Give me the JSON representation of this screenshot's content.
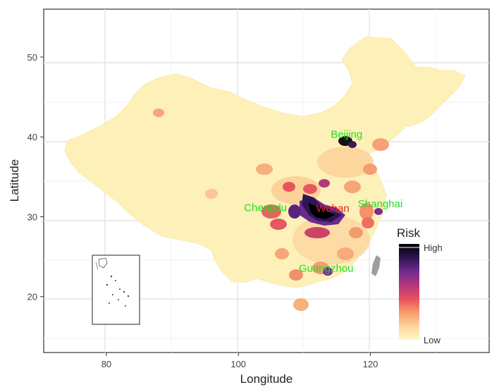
{
  "plot": {
    "xlabel": "Longitude",
    "ylabel": "Latitude",
    "x_ticks": [
      "80",
      "100",
      "120"
    ],
    "y_ticks": [
      "20",
      "30",
      "40",
      "50"
    ],
    "xlim": [
      70.5,
      138
    ],
    "ylim": [
      13,
      56
    ]
  },
  "cities": [
    {
      "name": "Beijing",
      "lon": 116.4,
      "lat": 39.9,
      "label_color": "#22e022"
    },
    {
      "name": "Chengdu",
      "lon": 104.1,
      "lat": 30.7,
      "label_color": "#22e022"
    },
    {
      "name": "Wuhan",
      "lon": 114.3,
      "lat": 30.6,
      "label_color": "#e02020"
    },
    {
      "name": "Shanghai",
      "lon": 121.5,
      "lat": 31.2,
      "label_color": "#22e022"
    },
    {
      "name": "Guangzhou",
      "lon": 113.3,
      "lat": 23.1,
      "label_color": "#22e022"
    }
  ],
  "legend": {
    "title": "Risk",
    "high_label": "High",
    "low_label": "Low",
    "colors": [
      "#fdf7c4",
      "#fdd59a",
      "#f99a6c",
      "#e8505d",
      "#b5367a",
      "#6f2a8f",
      "#2c1650",
      "#000000"
    ]
  },
  "colors": {
    "land_base": "#fdf0b8",
    "taiwan": "#9e9e9e",
    "grid": "#e4e4e4",
    "panel_bg": "#ffffff"
  }
}
